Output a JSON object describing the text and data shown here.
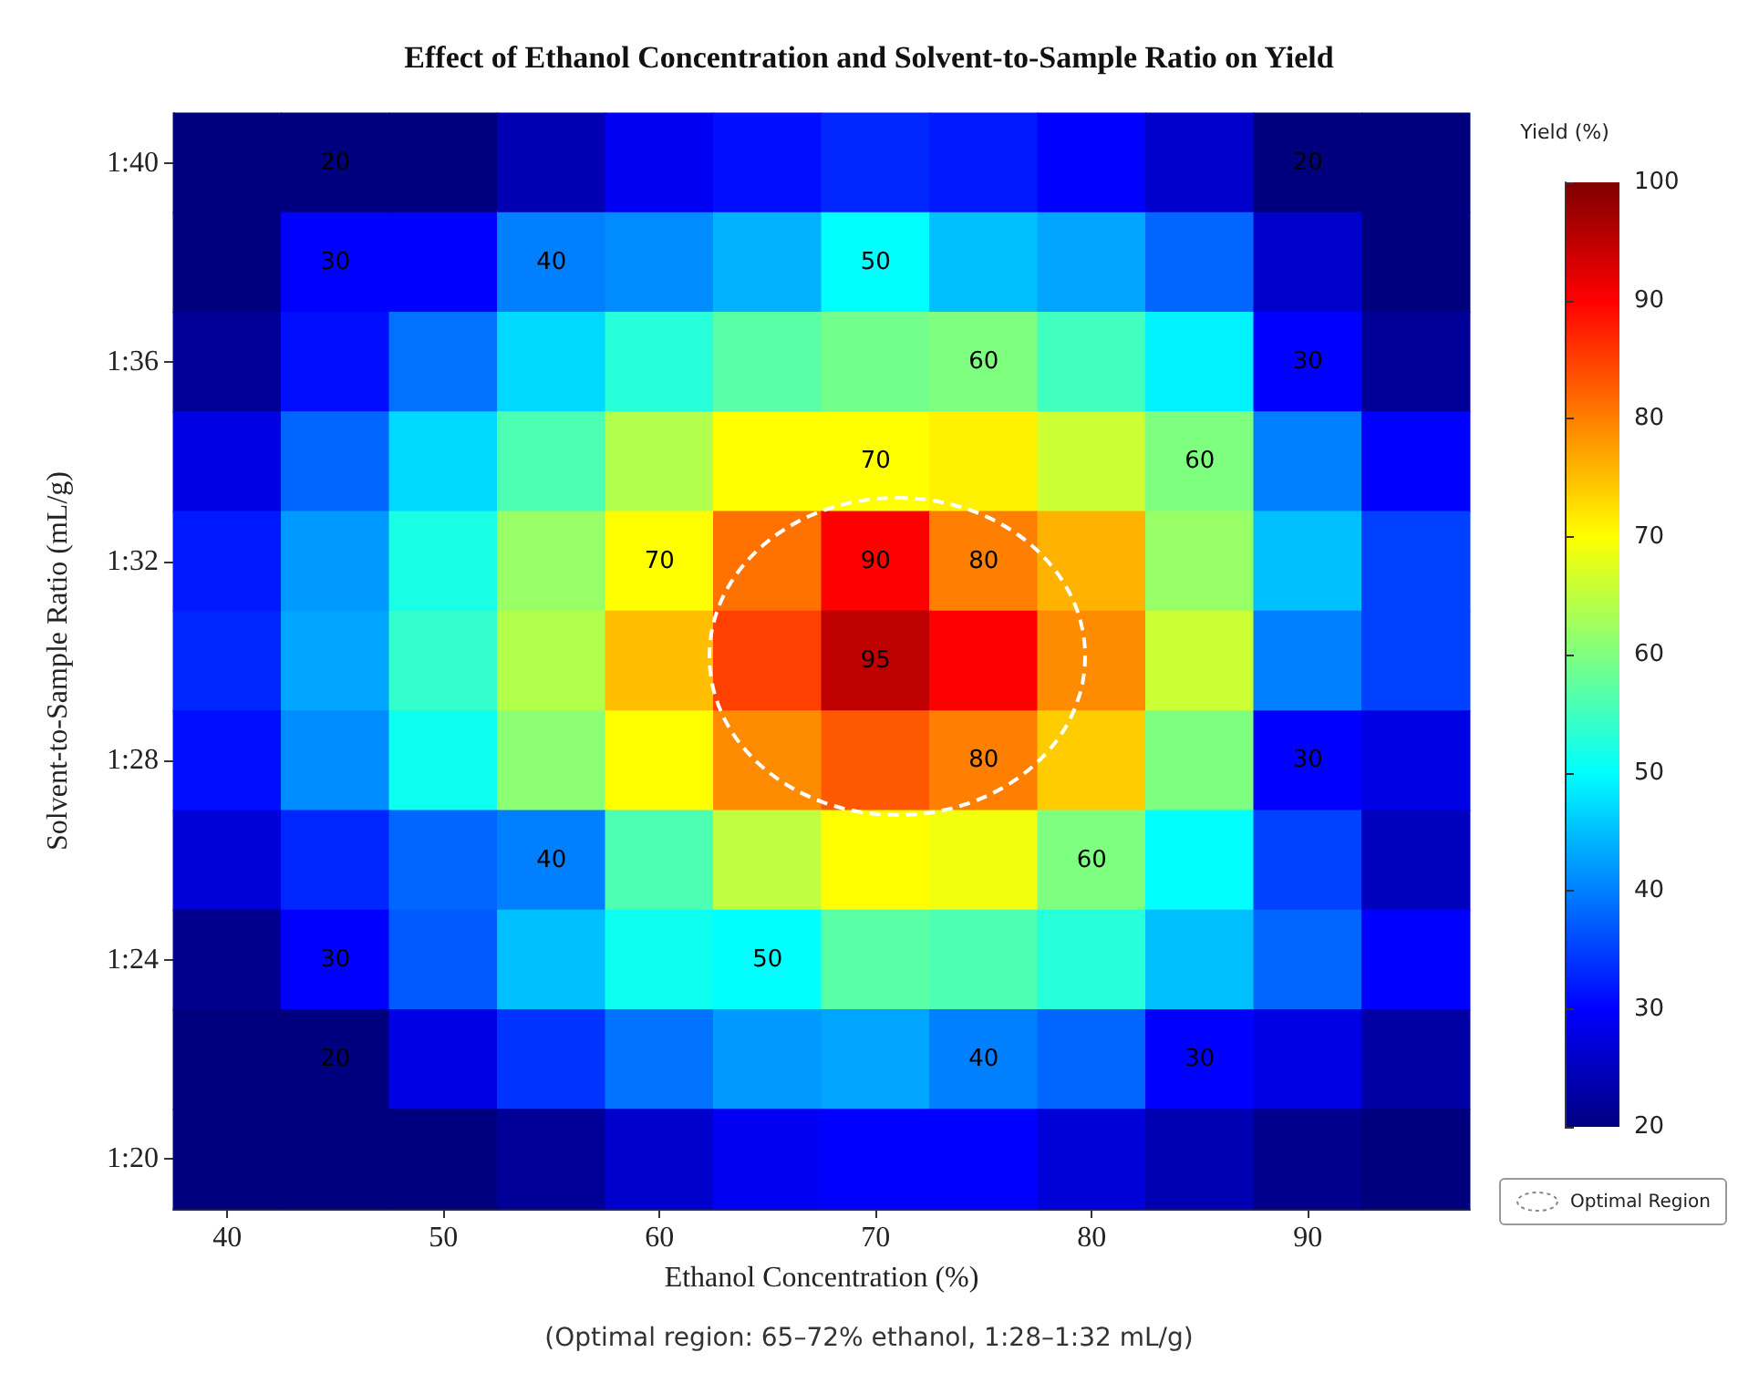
{
  "chart_data": {
    "type": "heatmap",
    "title": "Effect of Ethanol Concentration and Solvent-to-Sample Ratio on Yield",
    "xlabel": "Ethanol Concentration (%)",
    "ylabel": "Solvent-to-Sample Ratio (mL/g)",
    "clabel": "Yield (%)",
    "categories": [
      "40",
      null,
      "50",
      null,
      "60",
      null,
      "70",
      null,
      "80",
      null,
      "90",
      null
    ],
    "y_categories": [
      "1:40",
      null,
      "1:36",
      null,
      "1:32",
      null,
      "1:28",
      null,
      "1:24",
      null,
      "1:20"
    ],
    "cells": [
      [
        20,
        20,
        20,
        24,
        29,
        31,
        33,
        32,
        30,
        26,
        20,
        20
      ],
      [
        20,
        30,
        30,
        40,
        41,
        44,
        50,
        45,
        43,
        38,
        26,
        20
      ],
      [
        22,
        31,
        39,
        47,
        53,
        57,
        59,
        60,
        55,
        49,
        30,
        22
      ],
      [
        28,
        38,
        47,
        56,
        64,
        70,
        70,
        71,
        66,
        60,
        40,
        30
      ],
      [
        32,
        42,
        52,
        62,
        70,
        81,
        90,
        80,
        76,
        62,
        45,
        35
      ],
      [
        33,
        43,
        54,
        64,
        75,
        85,
        95,
        90,
        79,
        66,
        40,
        35
      ],
      [
        31,
        41,
        51,
        61,
        70,
        79,
        83,
        80,
        74,
        60,
        30,
        28
      ],
      [
        27,
        33,
        38,
        40,
        56,
        65,
        70,
        69,
        60,
        50,
        35,
        25
      ],
      [
        21,
        30,
        37,
        45,
        51,
        50,
        57,
        56,
        53,
        45,
        38,
        30
      ],
      [
        20,
        20,
        28,
        34,
        39,
        42,
        43,
        40,
        38,
        30,
        28,
        23
      ],
      [
        20,
        20,
        20,
        22,
        26,
        29,
        30,
        30,
        27,
        24,
        21,
        20
      ]
    ],
    "cell_labels": [
      [
        null,
        "20",
        null,
        null,
        null,
        null,
        null,
        null,
        null,
        null,
        "20",
        null
      ],
      [
        null,
        "30",
        null,
        "40",
        null,
        null,
        "50",
        null,
        null,
        null,
        null,
        null
      ],
      [
        null,
        null,
        null,
        null,
        null,
        null,
        null,
        "60",
        null,
        null,
        "30",
        null
      ],
      [
        null,
        null,
        null,
        null,
        null,
        null,
        "70",
        null,
        null,
        "60",
        null,
        null
      ],
      [
        null,
        null,
        null,
        null,
        "70",
        null,
        "90",
        "80",
        null,
        null,
        null,
        null
      ],
      [
        null,
        null,
        null,
        null,
        null,
        null,
        "95",
        null,
        null,
        null,
        null,
        null
      ],
      [
        null,
        null,
        null,
        null,
        null,
        null,
        null,
        "80",
        null,
        null,
        "30",
        null
      ],
      [
        null,
        null,
        null,
        "40",
        null,
        null,
        null,
        null,
        "60",
        null,
        null,
        null
      ],
      [
        null,
        "30",
        null,
        null,
        null,
        "50",
        null,
        null,
        null,
        null,
        null,
        null
      ],
      [
        null,
        "20",
        null,
        null,
        null,
        null,
        null,
        "40",
        null,
        "30",
        null,
        null
      ],
      [
        null,
        null,
        null,
        null,
        null,
        null,
        null,
        null,
        null,
        null,
        null,
        null
      ]
    ],
    "clim": [
      20,
      100
    ],
    "cticks": [
      20,
      30,
      40,
      50,
      60,
      70,
      80,
      90,
      100
    ],
    "annotations": [
      "(Optimal region: 65–72% ethanol, 1:28–1:32 mL/g)",
      "Optimal Region"
    ]
  }
}
